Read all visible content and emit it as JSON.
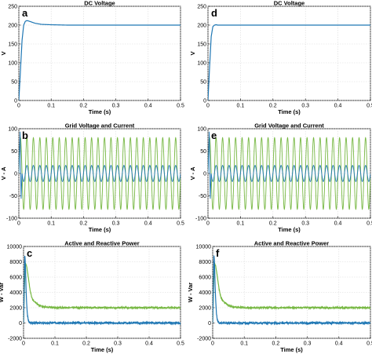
{
  "chart_data": [
    {
      "type": "line",
      "panel_label": "a",
      "title": "DC Voltage",
      "xlabel": "Time (s)",
      "ylabel": "V",
      "xlim": [
        0,
        0.5
      ],
      "ylim": [
        0,
        250
      ],
      "xticks": [
        "0",
        "0.1",
        "0.2",
        "0.3",
        "0.4",
        "0.5"
      ],
      "yticks": [
        "0",
        "50",
        "100",
        "150",
        "200",
        "250"
      ],
      "grid": true,
      "series": [
        {
          "color": "#1f77b4",
          "x": [
            0,
            0.005,
            0.01,
            0.015,
            0.02,
            0.025,
            0.03,
            0.04,
            0.05,
            0.07,
            0.1,
            0.15,
            0.2,
            0.3,
            0.4,
            0.5
          ],
          "y": [
            0,
            80,
            160,
            200,
            210,
            212,
            211,
            208,
            205,
            202,
            201,
            200,
            200,
            200,
            200,
            200
          ]
        }
      ]
    },
    {
      "type": "line",
      "panel_label": "d",
      "title": "DC Voltage",
      "xlabel": "Time (s)",
      "ylabel": "V",
      "xlim": [
        0,
        0.5
      ],
      "ylim": [
        0,
        250
      ],
      "xticks": [
        "0",
        "0.1",
        "0.2",
        "0.3",
        "0.4",
        "0.5"
      ],
      "yticks": [
        "0",
        "50",
        "100",
        "150",
        "200",
        "250"
      ],
      "grid": true,
      "series": [
        {
          "color": "#1f77b4",
          "x": [
            0,
            0.005,
            0.01,
            0.015,
            0.02,
            0.025,
            0.03,
            0.05,
            0.1,
            0.2,
            0.3,
            0.4,
            0.5
          ],
          "y": [
            0,
            90,
            170,
            196,
            200,
            201,
            200,
            200,
            200,
            200,
            200,
            200,
            200
          ]
        }
      ]
    },
    {
      "type": "line",
      "panel_label": "b",
      "title": "Grid Voltage and Current",
      "xlabel": "Time (s)",
      "ylabel": "V - A",
      "xlim": [
        0,
        0.5
      ],
      "ylim": [
        -100,
        100
      ],
      "xticks": [
        "0",
        "0.1",
        "0.2",
        "0.3",
        "0.4",
        "0.5"
      ],
      "yticks": [
        "-100",
        "-50",
        "0",
        "50",
        "100"
      ],
      "grid": true,
      "series": [
        {
          "color": "#77b843",
          "kind": "sine",
          "amplitude": 80,
          "frequency_hz": 50,
          "x_range": [
            0,
            0.5
          ]
        },
        {
          "color": "#1f77b4",
          "kind": "sine",
          "amplitude": 18,
          "frequency_hz": 50,
          "x_range": [
            0,
            0.5
          ],
          "start_transient": [
            95,
            -60
          ]
        }
      ]
    },
    {
      "type": "line",
      "panel_label": "e",
      "title": "Grid Voltage and Current",
      "xlabel": "Time (s)",
      "ylabel": "V - A",
      "xlim": [
        0,
        0.5
      ],
      "ylim": [
        -100,
        100
      ],
      "xticks": [
        "0",
        "0.1",
        "0.2",
        "0.3",
        "0.4",
        "0.5"
      ],
      "yticks": [
        "-100",
        "-50",
        "0",
        "50",
        "100"
      ],
      "grid": true,
      "series": [
        {
          "color": "#77b843",
          "kind": "sine",
          "amplitude": 80,
          "frequency_hz": 50,
          "x_range": [
            0,
            0.5
          ]
        },
        {
          "color": "#1f77b4",
          "kind": "sine",
          "amplitude": 18,
          "frequency_hz": 50,
          "x_range": [
            0,
            0.5
          ],
          "start_transient": [
            95,
            -60
          ]
        }
      ]
    },
    {
      "type": "line",
      "panel_label": "c",
      "title": "Active and Reactive Power",
      "xlabel": "Time (s)",
      "ylabel": "W - Var",
      "xlim": [
        0,
        0.5
      ],
      "ylim": [
        -2000,
        10000
      ],
      "xticks": [
        "0",
        "0.1",
        "0.2",
        "0.3",
        "0.4",
        "0.5"
      ],
      "yticks": [
        "-2000",
        "0",
        "2000",
        "4000",
        "6000",
        "8000",
        "10000"
      ],
      "grid": true,
      "series": [
        {
          "color": "#77b843",
          "x": [
            0,
            0.003,
            0.006,
            0.01,
            0.015,
            0.02,
            0.025,
            0.03,
            0.04,
            0.05,
            0.06,
            0.07,
            0.08,
            0.1,
            0.15,
            0.2,
            0.3,
            0.4,
            0.5
          ],
          "y": [
            0,
            5000,
            7800,
            7400,
            6000,
            4500,
            3500,
            3000,
            2600,
            2300,
            2150,
            2080,
            2050,
            2000,
            2000,
            2000,
            2000,
            2000,
            2000
          ],
          "noise": 90
        },
        {
          "color": "#1f77b4",
          "x": [
            0,
            0.002,
            0.004,
            0.006,
            0.008,
            0.01,
            0.012,
            0.015,
            0.018,
            0.022,
            0.03,
            0.5
          ],
          "y": [
            0,
            4000,
            9000,
            7500,
            4500,
            2500,
            1200,
            400,
            100,
            0,
            0,
            0
          ],
          "noise": 110
        }
      ]
    },
    {
      "type": "line",
      "panel_label": "f",
      "title": "Active and Reactive Power",
      "xlabel": "Time (s)",
      "ylabel": "W - Var",
      "xlim": [
        0,
        0.5
      ],
      "ylim": [
        -2000,
        10000
      ],
      "xticks": [
        "0",
        "0.1",
        "0.2",
        "0.3",
        "0.4",
        "0.5"
      ],
      "yticks": [
        "-2000",
        "0",
        "2000",
        "4000",
        "6000",
        "8000",
        "10000"
      ],
      "grid": true,
      "series": [
        {
          "color": "#77b843",
          "x": [
            0,
            0.003,
            0.006,
            0.01,
            0.015,
            0.02,
            0.025,
            0.03,
            0.04,
            0.05,
            0.06,
            0.07,
            0.08,
            0.1,
            0.15,
            0.2,
            0.3,
            0.4,
            0.5
          ],
          "y": [
            0,
            5000,
            7800,
            7400,
            6000,
            4500,
            3500,
            3000,
            2600,
            2300,
            2150,
            2080,
            2050,
            2000,
            2000,
            2000,
            2000,
            2000,
            2000
          ],
          "noise": 90
        },
        {
          "color": "#1f77b4",
          "x": [
            0,
            0.002,
            0.004,
            0.006,
            0.008,
            0.01,
            0.012,
            0.015,
            0.018,
            0.022,
            0.03,
            0.5
          ],
          "y": [
            0,
            4000,
            9000,
            7500,
            4500,
            2500,
            1200,
            400,
            100,
            0,
            0,
            0
          ],
          "noise": 110
        }
      ]
    }
  ]
}
